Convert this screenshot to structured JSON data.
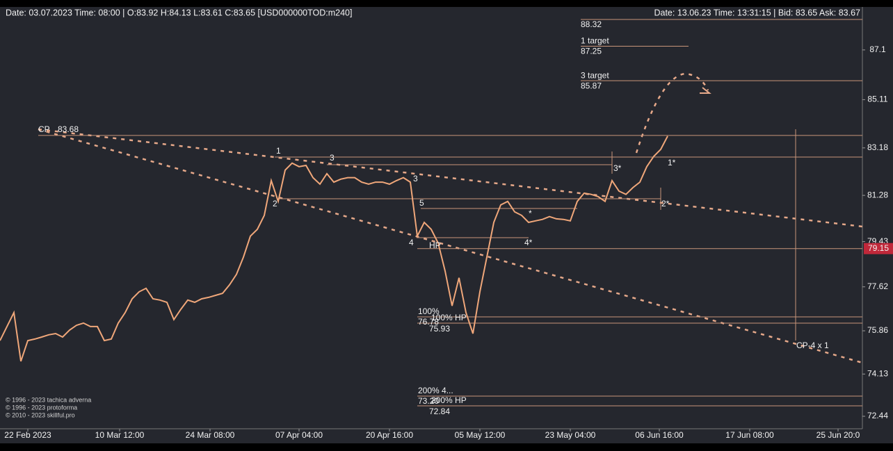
{
  "header": {
    "left": "Date: 03.07.2023 Time: 08:00 | O:83.92 H:84.13 L:83.61 C:83.65 [USD000000TOD:m240]",
    "right": "Date: 13.06.23 Time: 13:31:15 | Bid: 83.65 Ask: 83.67"
  },
  "chart_data": {
    "type": "line",
    "series": [
      {
        "color": "#f0a77a",
        "values": [
          75.47,
          76.03,
          76.59,
          74.64,
          75.47,
          75.53,
          75.61,
          75.7,
          75.75,
          75.61,
          75.89,
          76.08,
          76.17,
          76.03,
          76.03,
          75.47,
          75.53,
          76.17,
          76.59,
          77.14,
          77.42,
          77.56,
          77.14,
          77.09,
          77.0,
          76.31,
          76.72,
          77.09,
          77.0,
          77.14,
          77.2,
          77.28,
          77.36,
          77.7,
          78.12,
          78.81,
          79.65,
          79.92,
          80.48,
          81.87,
          81.04,
          82.29,
          82.57,
          82.43,
          82.48,
          81.99,
          81.73,
          82.15,
          81.81,
          81.93,
          81.99,
          81.99,
          81.81,
          81.73,
          81.81,
          81.81,
          81.73,
          81.87,
          81.99,
          81.81,
          79.65,
          80.2,
          79.92,
          79.37,
          78.25,
          76.86,
          77.98,
          76.59,
          75.75,
          77.42,
          78.81,
          80.2,
          80.9,
          81.04,
          80.62,
          80.48,
          80.2,
          80.26,
          80.32,
          80.43,
          80.34,
          80.32,
          80.26,
          81.04,
          81.37,
          81.32,
          81.23,
          81.04,
          81.87,
          81.45,
          81.32,
          81.59,
          81.81,
          82.43,
          82.84,
          83.12,
          83.65
        ]
      }
    ],
    "xlim": [
      0,
      124
    ],
    "xticks": [
      {
        "value": 4,
        "label": "22 Feb 2023"
      },
      {
        "value": 17.2,
        "label": "10 Mar 12:00"
      },
      {
        "value": 30.2,
        "label": "24 Mar 08:00"
      },
      {
        "value": 43,
        "label": "07 Apr 04:00"
      },
      {
        "value": 56,
        "label": "20 Apr 16:00"
      },
      {
        "value": 69,
        "label": "05 May 12:00"
      },
      {
        "value": 82,
        "label": "23 May 04:00"
      },
      {
        "value": 94.8,
        "label": "06 Jun 16:00"
      },
      {
        "value": 107.8,
        "label": "17 Jun 08:00"
      },
      {
        "value": 120.5,
        "label": "25 Jun 20:0"
      }
    ],
    "ylim": [
      71.94,
      88.82
    ],
    "yticks": [
      87.1,
      85.11,
      83.18,
      81.28,
      79.43,
      77.62,
      75.86,
      74.13,
      72.44
    ],
    "levels": [
      {
        "label": "CP",
        "value": 83.68
      },
      {
        "label": "1 target",
        "value": 87.25
      },
      {
        "label": "3 target",
        "value": 85.87
      },
      {
        "value": 88.32
      },
      {
        "value": 79.15
      }
    ],
    "annotations": [
      "100%",
      "76.78",
      "100% HP",
      "75.93",
      "200%  4...",
      "73.20",
      "200% HP",
      "72.84",
      "CP-4 x 1",
      "1",
      "2",
      "3",
      "3",
      "4",
      "5",
      "HP",
      "1*",
      "2*",
      "3*",
      "4*",
      "*"
    ]
  },
  "footer": [
    "© 1996 - 2023 tachica adverna",
    "© 1996 - 2023 protoforma",
    "© 2010 - 2023 skillful.pro"
  ]
}
